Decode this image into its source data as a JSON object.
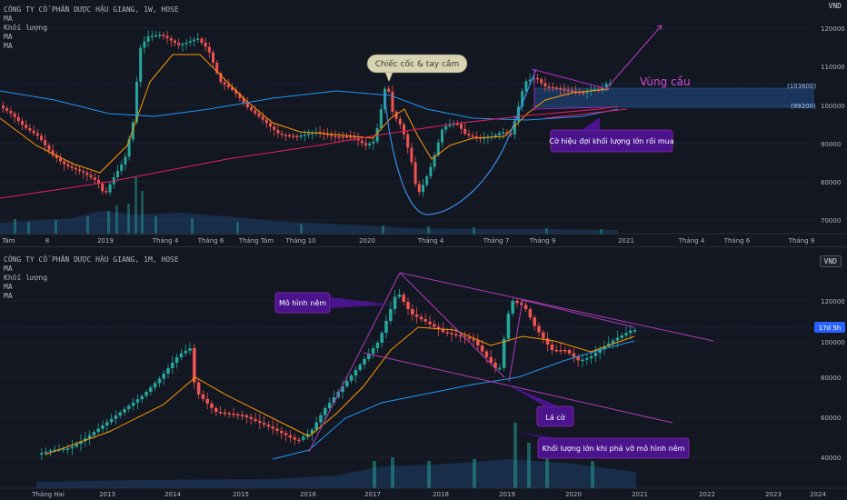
{
  "colors": {
    "bg": "#131722",
    "up": "#26a69a",
    "down": "#ef5350",
    "ma_orange": "#ff9800",
    "ma_blue": "#2196f3",
    "ma_red": "#e91e63",
    "annot_purple": "#9c27b0",
    "grid": "#2a2e39",
    "text": "#b2b5be"
  },
  "top": {
    "legend": [
      "CÔNG TY CỔ PHẦN DƯỢC HẬU GIANG, 1W, HOSE",
      "MA",
      "Khối lượng",
      "MA",
      "MA"
    ],
    "unit": "VND",
    "y_ticks": [
      "120000",
      "110000",
      "100000",
      "90000",
      "80000",
      "70000"
    ],
    "x_ticks": [
      "g Tám",
      "8",
      "2019",
      "Tháng 4",
      "Tháng 6",
      "Tháng Tám",
      "Tháng 10",
      "2020",
      "Tháng 4",
      "Tháng 7",
      "Tháng 9",
      "2021",
      "Tháng 4",
      "Tháng 6",
      "Tháng 9"
    ],
    "price_tags": [
      "(103600)",
      "(99200)"
    ],
    "annotations": {
      "cup": "Chiếc cốc & tay cầm",
      "zone": "Vùng cầu",
      "flag_note": "Cờ hiệu đợi khối lượng lớn rồi mua"
    }
  },
  "bottom": {
    "legend": [
      "CÔNG TY CỔ PHẦN DƯỢC HẬU GIANG, 1M, HOSE",
      "MA",
      "Khối lượng",
      "MA",
      "MA"
    ],
    "unit": "VND",
    "y_ticks": [
      "120000",
      "100000",
      "80000",
      "60000",
      "40000"
    ],
    "x_ticks": [
      "Tháng Hai",
      "2013",
      "2014",
      "2015",
      "2016",
      "2017",
      "2018",
      "2019",
      "2020",
      "2021",
      "2022",
      "2023",
      "2024"
    ],
    "price_tag": "17d 5h",
    "annotations": {
      "wedge": "Mô hình nêm",
      "flag": "Lá cờ",
      "volume_note": "Khối lượng lớn khi phá vỡ mô hình nêm"
    }
  }
}
